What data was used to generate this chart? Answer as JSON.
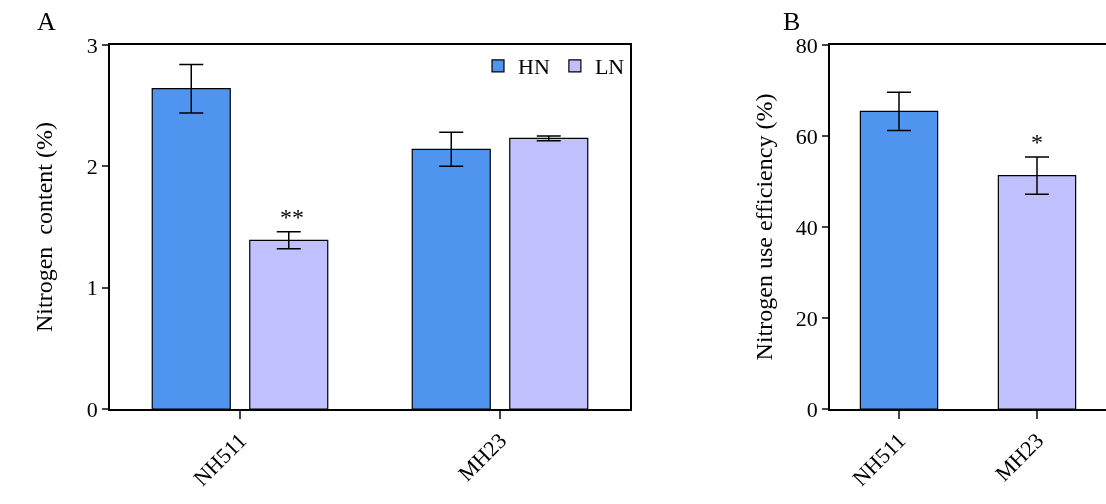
{
  "chart_data": [
    {
      "type": "bar",
      "title": "A",
      "ylabel": "Nitrogen  content (%)",
      "categories": [
        "NH511",
        "MH23"
      ],
      "series": [
        {
          "name": "HN",
          "color": "#4f94ef",
          "values": [
            2.64,
            2.14
          ],
          "errors": [
            0.2,
            0.14
          ]
        },
        {
          "name": "LN",
          "color": "#c0c0fe",
          "values": [
            1.39,
            2.23
          ],
          "errors": [
            0.07,
            0.02
          ]
        }
      ],
      "ylim": [
        0,
        3
      ],
      "yticks": [
        0,
        1,
        2,
        3
      ],
      "grid": false,
      "legend": "top right",
      "annotations": [
        "**"
      ]
    },
    {
      "type": "bar",
      "title": "B",
      "ylabel": "Nitrogen use efficiency (%)",
      "categories": [
        "NH511",
        "MH23"
      ],
      "values": [
        65.4,
        51.3
      ],
      "colors": [
        "#4f94ef",
        "#c0c0fe"
      ],
      "errors": [
        4.2,
        4.1
      ],
      "ylim": [
        0,
        80
      ],
      "yticks": [
        0,
        20,
        40,
        60,
        80
      ],
      "grid": false,
      "legend": false,
      "annotations": [
        {
          "text": "*",
          "x": "MH23",
          "y": 55.4
        }
      ]
    }
  ]
}
